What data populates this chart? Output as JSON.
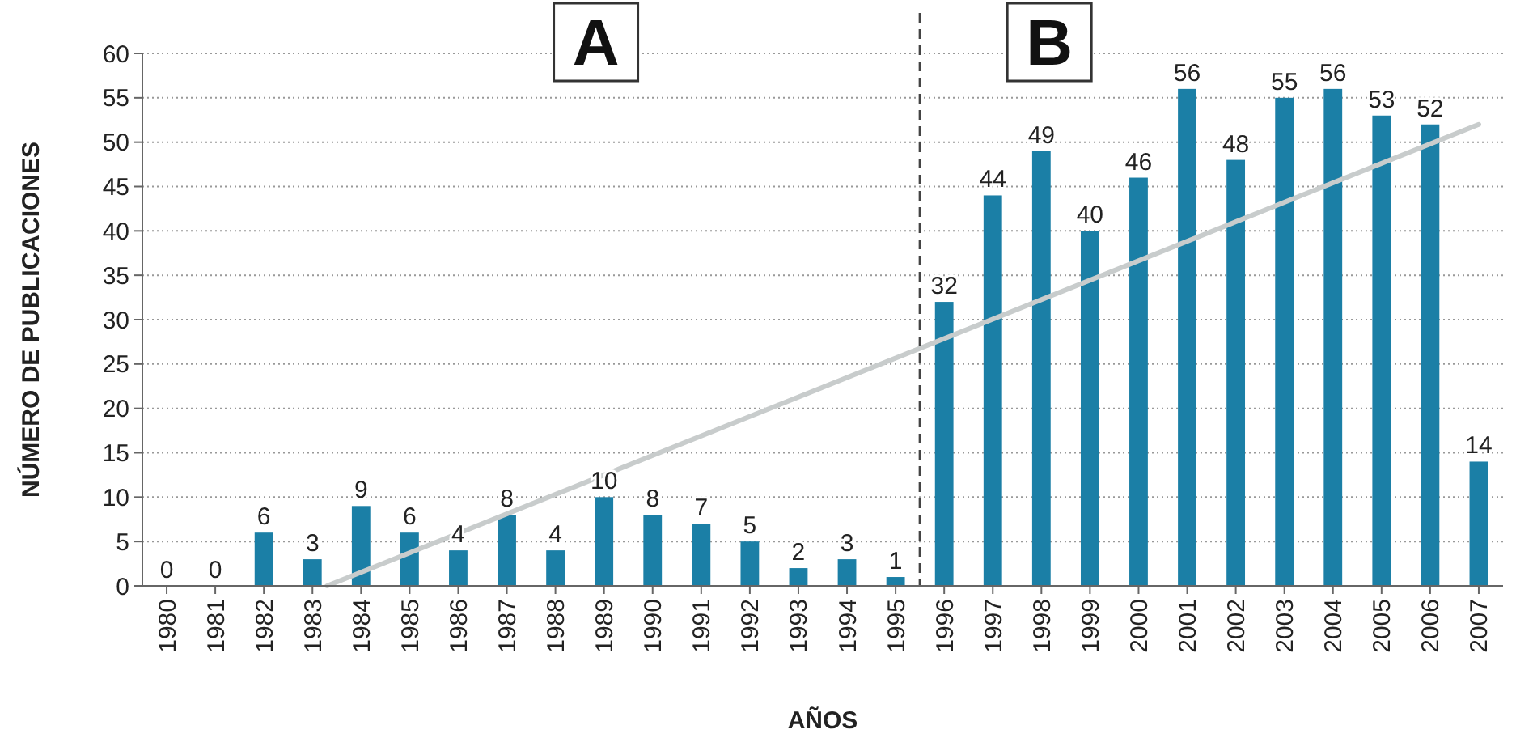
{
  "chart_data": {
    "type": "bar",
    "xlabel": "AÑOS",
    "ylabel": "NÚMERO DE PUBLICACIONES",
    "x": [
      1980,
      1981,
      1982,
      1983,
      1984,
      1985,
      1986,
      1987,
      1988,
      1989,
      1990,
      1991,
      1992,
      1993,
      1994,
      1995,
      1996,
      1997,
      1998,
      1999,
      2000,
      2001,
      2002,
      2003,
      2004,
      2005,
      2006,
      2007
    ],
    "xlim": [
      1979.5,
      2007.5
    ],
    "xticks": [
      1980,
      1981,
      1982,
      1983,
      1984,
      1985,
      1986,
      1987,
      1988,
      1989,
      1990,
      1991,
      1992,
      1993,
      1994,
      1995,
      1996,
      1997,
      1998,
      1999,
      2000,
      2001,
      2002,
      2003,
      2004,
      2005,
      2006,
      2007
    ],
    "ylim": [
      0,
      60
    ],
    "yticks": [
      0,
      5,
      10,
      15,
      20,
      25,
      30,
      35,
      40,
      45,
      50,
      55,
      60
    ],
    "series": [
      {
        "color": "#1b7fa6",
        "values": [
          0,
          0,
          6,
          3,
          9,
          6,
          4,
          8,
          4,
          10,
          8,
          7,
          5,
          2,
          3,
          1,
          32,
          44,
          49,
          40,
          46,
          56,
          48,
          55,
          56,
          53,
          52,
          14
        ],
        "value_labels": [
          "0",
          "0",
          "6",
          "3",
          "9",
          "6",
          "4",
          "8",
          "4",
          "10",
          "8",
          "7",
          "5",
          "2",
          "3",
          "1",
          "32",
          "44",
          "49",
          "40",
          "46",
          "56",
          "48",
          "55",
          "56",
          "53",
          "52",
          "14"
        ]
      },
      {
        "type": "line",
        "color": "#c8cccc",
        "x": [
          1983.3,
          2007
        ],
        "values": [
          0,
          52
        ]
      }
    ],
    "grid": "y",
    "ref_lines": [
      {
        "axis": "x",
        "value": 1995.5,
        "color": "#444444",
        "line_style": "dashed"
      }
    ],
    "annotations": [
      "A",
      "B"
    ]
  }
}
